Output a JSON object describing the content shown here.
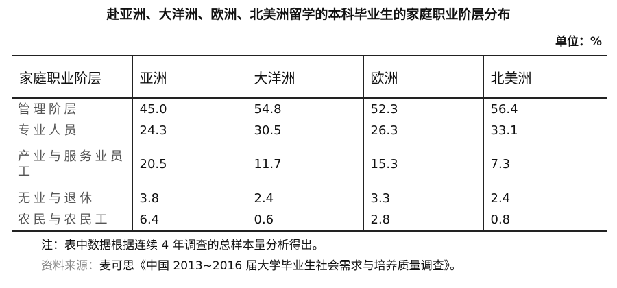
{
  "header": {
    "title": "赴亚洲、大洋洲、欧洲、北美洲留学的本科毕业生的家庭职业阶层分布",
    "unit": "单位：%"
  },
  "table": {
    "columns": [
      "家庭职业阶层",
      "亚洲",
      "大洋洲",
      "欧洲",
      "北美洲"
    ],
    "rows": [
      [
        "管理阶层",
        "45.0",
        "54.8",
        "52.3",
        "56.4"
      ],
      [
        "专业人员",
        "24.3",
        "30.5",
        "26.3",
        "33.1"
      ],
      [
        "产业与服务业员工",
        "20.5",
        "11.7",
        "15.3",
        "7.3"
      ],
      [
        "无业与退休",
        "3.8",
        "2.4",
        "3.3",
        "2.4"
      ],
      [
        "农民与农民工",
        "6.4",
        "0.6",
        "2.8",
        "0.8"
      ]
    ]
  },
  "footer": {
    "note": "注：表中数据根据连续 4 年调查的总样本量分析得出。",
    "source_label": "资料来源：",
    "source": "麦可思《中国 2013~2016 届大学毕业生社会需求与培养质量调查》。"
  }
}
